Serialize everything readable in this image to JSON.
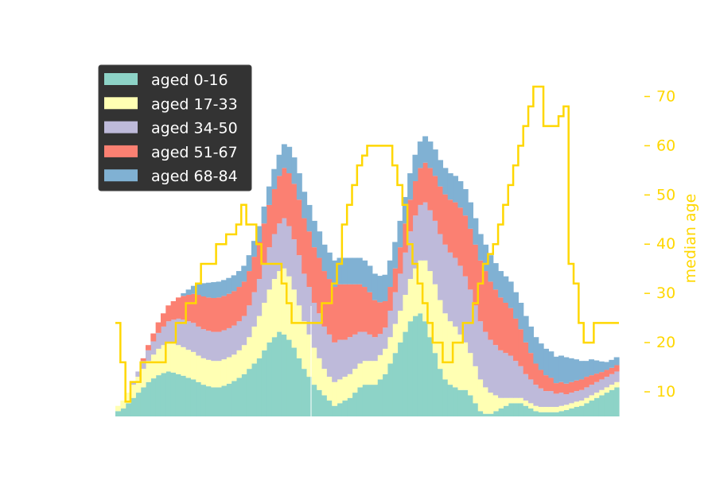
{
  "chart_data": {
    "type": "area",
    "subtype": "stacked-step-area-with-secondary-line",
    "title": "",
    "xlabel": "",
    "ylabel": "",
    "x": [
      0,
      1,
      2,
      3,
      4,
      5,
      6,
      7,
      8,
      9,
      10,
      11,
      12,
      13,
      14,
      15,
      16,
      17,
      18,
      19,
      20,
      21,
      22,
      23,
      24,
      25,
      26,
      27,
      28,
      29,
      30,
      31,
      32,
      33,
      34,
      35,
      36,
      37,
      38,
      39,
      40,
      41,
      42,
      43,
      44,
      45,
      46,
      47,
      48,
      49,
      50,
      51,
      52,
      53,
      54,
      55,
      56,
      57,
      58,
      59,
      60,
      61,
      62,
      63,
      64,
      65,
      66,
      67,
      68,
      69,
      70,
      71,
      72,
      73,
      74,
      75,
      76,
      77,
      78,
      79,
      80,
      81,
      82,
      83,
      84,
      85,
      86,
      87,
      88,
      89,
      90,
      91,
      92,
      93,
      94,
      95,
      96,
      97,
      98,
      99
    ],
    "series": [
      {
        "name": "aged 0-16",
        "color": "#8dd3c7",
        "values": [
          1.0,
          1.5,
          2.5,
          3.5,
          4.5,
          5.5,
          6.5,
          7.2,
          7.8,
          8.2,
          8.5,
          8.3,
          8.0,
          7.7,
          7.3,
          7.0,
          6.5,
          6.0,
          5.7,
          5.5,
          5.5,
          5.8,
          6.2,
          6.7,
          7.3,
          8.0,
          9.0,
          10.0,
          11.0,
          12.5,
          14.0,
          15.0,
          16.0,
          15.5,
          14.5,
          13.0,
          11.0,
          9.0,
          7.5,
          6.0,
          5.0,
          4.0,
          3.0,
          2.0,
          2.5,
          3.0,
          3.5,
          4.5,
          5.5,
          6.0,
          6.0,
          6.0,
          7.0,
          8.0,
          10.0,
          12.0,
          14.0,
          16.0,
          18.0,
          19.0,
          19.5,
          18.0,
          15.0,
          12.0,
          9.0,
          7.0,
          6.0,
          5.5,
          5.0,
          5.0,
          4.0,
          2.5,
          1.0,
          0.5,
          0.5,
          1.0,
          1.5,
          2.0,
          2.5,
          2.5,
          2.5,
          2.0,
          1.5,
          1.0,
          0.8,
          0.8,
          0.8,
          0.8,
          1.0,
          1.2,
          1.5,
          1.8,
          2.0,
          2.5,
          3.0,
          3.5,
          4.0,
          4.5,
          5.0,
          5.5
        ]
      },
      {
        "name": "aged 17-33",
        "color": "#ffffb3",
        "values": [
          1.0,
          1.5,
          2.0,
          2.5,
          3.0,
          3.5,
          4.0,
          4.5,
          5.0,
          5.3,
          5.5,
          5.5,
          5.5,
          5.4,
          5.3,
          5.2,
          5.0,
          5.0,
          5.0,
          5.0,
          5.0,
          5.0,
          5.0,
          5.0,
          5.2,
          5.5,
          6.0,
          7.0,
          8.0,
          9.0,
          10.0,
          11.0,
          11.5,
          12.5,
          12.0,
          11.0,
          10.0,
          9.0,
          8.0,
          7.0,
          6.0,
          5.0,
          4.5,
          4.5,
          4.5,
          4.5,
          4.5,
          4.5,
          4.5,
          4.5,
          4.5,
          4.5,
          4.6,
          4.8,
          5.0,
          5.5,
          6.0,
          7.0,
          8.0,
          9.0,
          10.0,
          11.5,
          12.5,
          13.0,
          13.0,
          12.5,
          12.0,
          11.5,
          10.5,
          9.0,
          8.0,
          7.0,
          6.0,
          5.0,
          4.0,
          3.0,
          2.0,
          1.5,
          1.0,
          1.0,
          1.0,
          1.0,
          1.0,
          1.0,
          1.0,
          1.0,
          1.0,
          1.0,
          1.0,
          1.0,
          1.0,
          1.0,
          1.0,
          1.0,
          1.0,
          1.0,
          1.0,
          1.0,
          1.0,
          1.0
        ]
      },
      {
        "name": "aged 34-50",
        "color": "#bebada",
        "values": [
          0.0,
          0.0,
          0.0,
          0.5,
          1.0,
          1.5,
          2.0,
          2.5,
          3.0,
          3.5,
          4.0,
          4.5,
          5.0,
          5.2,
          5.4,
          5.5,
          5.5,
          5.5,
          5.5,
          5.5,
          5.5,
          5.5,
          5.5,
          5.5,
          5.5,
          5.5,
          6.0,
          6.5,
          7.0,
          7.5,
          8.0,
          8.5,
          9.0,
          9.5,
          9.5,
          9.5,
          9.5,
          9.0,
          9.0,
          8.5,
          8.5,
          8.0,
          8.0,
          7.5,
          7.5,
          7.0,
          7.0,
          6.5,
          6.0,
          5.5,
          5.0,
          4.5,
          4.0,
          4.0,
          5.0,
          6.0,
          7.0,
          8.0,
          9.0,
          10.0,
          10.5,
          11.0,
          11.5,
          12.0,
          12.5,
          13.0,
          13.0,
          13.0,
          13.0,
          12.5,
          12.0,
          11.5,
          11.0,
          10.5,
          10.0,
          9.5,
          9.0,
          8.5,
          8.0,
          7.0,
          6.0,
          5.0,
          4.5,
          4.0,
          3.5,
          3.0,
          3.0,
          2.5,
          2.5,
          2.0,
          2.0,
          2.0,
          2.0,
          2.0,
          2.0,
          2.0,
          2.0,
          2.0,
          2.0,
          2.0
        ]
      },
      {
        "name": "aged 51-67",
        "color": "#fb8072",
        "values": [
          0.0,
          0.0,
          0.0,
          0.0,
          0.0,
          0.5,
          1.0,
          1.5,
          2.0,
          2.5,
          3.0,
          3.5,
          4.0,
          4.5,
          5.0,
          5.5,
          6.0,
          6.2,
          6.3,
          6.4,
          6.5,
          6.5,
          6.5,
          6.5,
          6.5,
          6.5,
          6.5,
          6.7,
          7.0,
          7.5,
          8.0,
          8.5,
          9.0,
          9.5,
          10.0,
          10.5,
          10.5,
          10.5,
          10.5,
          10.5,
          10.5,
          10.5,
          10.5,
          10.5,
          10.5,
          10.5,
          10.0,
          9.5,
          9.0,
          8.5,
          8.0,
          7.0,
          6.0,
          5.0,
          4.5,
          4.5,
          5.0,
          5.5,
          6.0,
          6.5,
          7.0,
          7.5,
          8.0,
          8.5,
          9.0,
          9.5,
          10.0,
          10.5,
          11.0,
          11.5,
          11.5,
          11.5,
          11.5,
          11.5,
          11.0,
          10.5,
          10.0,
          9.5,
          9.0,
          8.0,
          7.0,
          6.0,
          5.0,
          4.0,
          3.5,
          3.0,
          2.5,
          2.0,
          2.0,
          2.0,
          2.0,
          2.0,
          2.0,
          2.0,
          1.8,
          1.6,
          1.4,
          1.3,
          1.2,
          1.2
        ]
      },
      {
        "name": "aged 68-84",
        "color": "#80b1d3",
        "values": [
          0.0,
          0.0,
          0.0,
          0.0,
          0.0,
          0.0,
          0.0,
          0.0,
          0.0,
          0.0,
          0.0,
          0.0,
          0.0,
          0.5,
          1.0,
          1.5,
          2.0,
          2.5,
          2.8,
          3.0,
          3.0,
          3.0,
          3.0,
          3.0,
          3.0,
          3.0,
          3.0,
          3.0,
          3.0,
          3.2,
          3.5,
          3.8,
          4.0,
          4.5,
          5.0,
          5.0,
          5.0,
          5.0,
          5.0,
          5.0,
          5.0,
          5.0,
          5.0,
          5.0,
          5.0,
          5.0,
          5.0,
          5.0,
          5.0,
          5.0,
          5.0,
          5.0,
          5.0,
          5.0,
          5.0,
          5.0,
          5.0,
          5.0,
          5.0,
          5.0,
          5.0,
          5.0,
          5.0,
          5.0,
          5.0,
          5.0,
          5.0,
          5.0,
          5.0,
          5.0,
          5.0,
          5.0,
          5.0,
          5.0,
          5.0,
          5.0,
          5.0,
          5.0,
          5.0,
          5.0,
          5.0,
          5.0,
          5.0,
          5.0,
          5.0,
          5.0,
          5.0,
          5.0,
          5.0,
          5.0,
          4.5,
          4.0,
          3.5,
          3.0,
          3.0,
          2.5,
          2.0,
          1.5,
          1.5,
          1.5
        ]
      }
    ],
    "ylim": [
      0,
      67.5
    ],
    "secondary_axis": {
      "label": "median age",
      "color": "#ffd700",
      "ylim": [
        5.0,
        77.5
      ],
      "ticks": [
        "10",
        "20",
        "30",
        "40",
        "50",
        "60",
        "70"
      ],
      "tick_values": [
        10,
        20,
        30,
        40,
        50,
        60,
        70
      ],
      "line_x": [
        0,
        1,
        2,
        3,
        4,
        5,
        6,
        7,
        8,
        9,
        10,
        11,
        12,
        13,
        14,
        15,
        16,
        17,
        18,
        19,
        20,
        21,
        22,
        23,
        24,
        25,
        26,
        27,
        28,
        29,
        30,
        31,
        32,
        33,
        34,
        35,
        36,
        37,
        38,
        39,
        40,
        41,
        42,
        43,
        44,
        45,
        46,
        47,
        48,
        49,
        50,
        51,
        52,
        53,
        54,
        55,
        56,
        57,
        58,
        59,
        60,
        61,
        62,
        63,
        64,
        65,
        66,
        67,
        68,
        69,
        70,
        71,
        72,
        73,
        74,
        75,
        76,
        77,
        78,
        79,
        80,
        81,
        82,
        83,
        84,
        85,
        86,
        87,
        88,
        89,
        90,
        91,
        92,
        93,
        94,
        95,
        96,
        97,
        98,
        99,
        100
      ],
      "line_values": [
        24,
        16,
        8,
        12,
        12,
        16,
        16,
        16,
        16,
        16,
        20,
        20,
        24,
        24,
        28,
        28,
        32,
        36,
        36,
        36,
        40,
        40,
        42,
        42,
        44,
        48,
        44,
        44,
        40,
        36,
        36,
        36,
        36,
        32,
        28,
        24,
        24,
        24,
        24,
        24,
        24,
        28,
        28,
        32,
        36,
        44,
        48,
        52,
        56,
        58,
        60,
        60,
        60,
        60,
        60,
        56,
        52,
        48,
        40,
        36,
        32,
        28,
        24,
        20,
        20,
        16,
        16,
        20,
        20,
        24,
        24,
        28,
        32,
        36,
        38,
        40,
        44,
        48,
        52,
        56,
        60,
        64,
        68,
        72,
        72,
        64,
        64,
        64,
        66,
        68,
        36,
        32,
        24,
        20,
        20,
        24,
        24,
        24,
        24,
        24,
        24
      ]
    },
    "legend": {
      "placement": "upper-left",
      "entries": [
        "aged 0-16",
        "aged 17-33",
        "aged 34-50",
        "aged 51-67",
        "aged 68-84"
      ]
    },
    "grid": false
  }
}
